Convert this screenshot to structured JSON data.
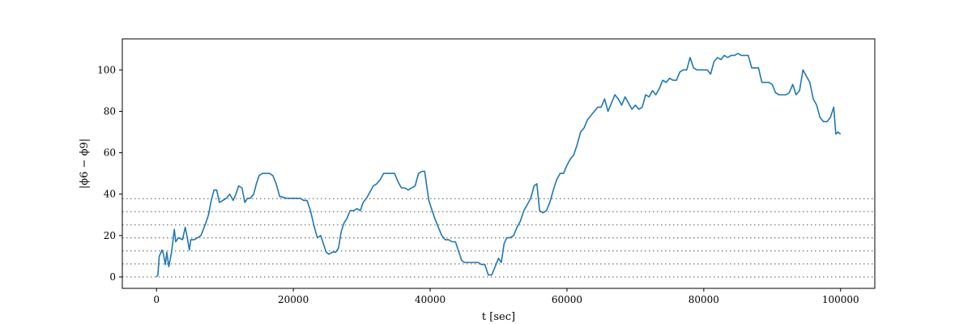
{
  "chart_data": {
    "type": "line",
    "title": "",
    "xlabel": "t [sec]",
    "ylabel": "|ϕ6 − ϕ9|",
    "xlim": [
      -5000,
      105000
    ],
    "ylim": [
      -5.5,
      115
    ],
    "xticks": [
      0,
      20000,
      40000,
      60000,
      80000,
      100000
    ],
    "xtick_labels": [
      "0",
      "20000",
      "40000",
      "60000",
      "80000",
      "100000"
    ],
    "yticks": [
      0,
      20,
      40,
      60,
      80,
      100
    ],
    "ytick_labels": [
      "0",
      "20",
      "40",
      "60",
      "80",
      "100"
    ],
    "grid": false,
    "legend": "none",
    "colors": {
      "series": "#1f77b4",
      "reference_lines": "#808080"
    },
    "reference_lines": {
      "orientation": "horizontal",
      "style": "dotted",
      "y": [
        0,
        6.3,
        12.6,
        18.9,
        25.2,
        31.5,
        37.8
      ]
    },
    "series": [
      {
        "points": [
          [
            0,
            0
          ],
          [
            200,
            1
          ],
          [
            400,
            10
          ],
          [
            800,
            13
          ],
          [
            1000,
            11
          ],
          [
            1300,
            6
          ],
          [
            1500,
            12
          ],
          [
            1800,
            5
          ],
          [
            2200,
            12
          ],
          [
            2600,
            23
          ],
          [
            2800,
            17
          ],
          [
            3200,
            19
          ],
          [
            3800,
            18
          ],
          [
            4200,
            24
          ],
          [
            4500,
            19
          ],
          [
            4800,
            13
          ],
          [
            5000,
            18
          ],
          [
            5500,
            18
          ],
          [
            6000,
            19
          ],
          [
            6500,
            20
          ],
          [
            7200,
            26
          ],
          [
            7600,
            30
          ],
          [
            8000,
            37
          ],
          [
            8400,
            42
          ],
          [
            8800,
            42
          ],
          [
            9200,
            36
          ],
          [
            9700,
            37
          ],
          [
            10200,
            38
          ],
          [
            10700,
            40
          ],
          [
            11200,
            37
          ],
          [
            11600,
            40
          ],
          [
            12000,
            44
          ],
          [
            12500,
            43
          ],
          [
            12900,
            36
          ],
          [
            13300,
            38
          ],
          [
            13700,
            38
          ],
          [
            14200,
            40
          ],
          [
            14600,
            45
          ],
          [
            15000,
            49
          ],
          [
            15500,
            50
          ],
          [
            16000,
            50
          ],
          [
            16500,
            50
          ],
          [
            17000,
            49
          ],
          [
            17500,
            45
          ],
          [
            18000,
            39
          ],
          [
            19000,
            38
          ],
          [
            20000,
            38
          ],
          [
            21000,
            38
          ],
          [
            21500,
            37
          ],
          [
            22000,
            37
          ],
          [
            22500,
            32
          ],
          [
            23000,
            25
          ],
          [
            23500,
            19
          ],
          [
            24000,
            20
          ],
          [
            24400,
            16
          ],
          [
            24800,
            12
          ],
          [
            25200,
            11
          ],
          [
            25700,
            12
          ],
          [
            26200,
            12
          ],
          [
            26600,
            14
          ],
          [
            27000,
            22
          ],
          [
            27400,
            26
          ],
          [
            27800,
            28
          ],
          [
            28300,
            32
          ],
          [
            28800,
            32
          ],
          [
            29300,
            33
          ],
          [
            29800,
            32
          ],
          [
            30200,
            36
          ],
          [
            30700,
            38
          ],
          [
            31200,
            41
          ],
          [
            31700,
            44
          ],
          [
            32200,
            45
          ],
          [
            32700,
            47
          ],
          [
            33200,
            50
          ],
          [
            33700,
            50
          ],
          [
            34300,
            50
          ],
          [
            34800,
            50
          ],
          [
            35300,
            46
          ],
          [
            35800,
            43
          ],
          [
            36300,
            43
          ],
          [
            36800,
            42
          ],
          [
            37300,
            43
          ],
          [
            37800,
            44
          ],
          [
            38300,
            50
          ],
          [
            38800,
            51
          ],
          [
            39200,
            51
          ],
          [
            39500,
            44
          ],
          [
            39800,
            37
          ],
          [
            40200,
            33
          ],
          [
            40700,
            28
          ],
          [
            41200,
            24
          ],
          [
            41700,
            20
          ],
          [
            42200,
            18
          ],
          [
            42700,
            18
          ],
          [
            43200,
            17
          ],
          [
            43700,
            17
          ],
          [
            44200,
            12
          ],
          [
            44600,
            8
          ],
          [
            45000,
            7
          ],
          [
            45500,
            7
          ],
          [
            46000,
            7
          ],
          [
            46500,
            7
          ],
          [
            47000,
            7
          ],
          [
            47500,
            6
          ],
          [
            48000,
            6
          ],
          [
            48500,
            1
          ],
          [
            49000,
            1
          ],
          [
            49500,
            5
          ],
          [
            50000,
            9
          ],
          [
            50400,
            7
          ],
          [
            50800,
            16
          ],
          [
            51200,
            19
          ],
          [
            51700,
            19
          ],
          [
            52200,
            20
          ],
          [
            52700,
            24
          ],
          [
            53200,
            27
          ],
          [
            53700,
            32
          ],
          [
            54200,
            35
          ],
          [
            54700,
            38
          ],
          [
            55200,
            44
          ],
          [
            55600,
            45
          ],
          [
            56000,
            32
          ],
          [
            56500,
            31
          ],
          [
            57000,
            32
          ],
          [
            57500,
            36
          ],
          [
            58000,
            42
          ],
          [
            58500,
            47
          ],
          [
            59000,
            50
          ],
          [
            59500,
            50
          ],
          [
            60000,
            54
          ],
          [
            60500,
            57
          ],
          [
            61000,
            59
          ],
          [
            61500,
            64
          ],
          [
            62000,
            70
          ],
          [
            62500,
            72
          ],
          [
            63000,
            76
          ],
          [
            63500,
            78
          ],
          [
            64000,
            80
          ],
          [
            64500,
            82
          ],
          [
            65000,
            82
          ],
          [
            65500,
            86
          ],
          [
            66000,
            80
          ],
          [
            66500,
            84
          ],
          [
            67000,
            88
          ],
          [
            67500,
            86
          ],
          [
            68000,
            83
          ],
          [
            68500,
            87
          ],
          [
            69000,
            84
          ],
          [
            69500,
            81
          ],
          [
            70000,
            83
          ],
          [
            70500,
            81
          ],
          [
            71000,
            82
          ],
          [
            71500,
            88
          ],
          [
            72000,
            87
          ],
          [
            72500,
            90
          ],
          [
            73000,
            88
          ],
          [
            73500,
            91
          ],
          [
            74000,
            95
          ],
          [
            74500,
            94
          ],
          [
            75000,
            96
          ],
          [
            75500,
            95
          ],
          [
            76000,
            95
          ],
          [
            76500,
            99
          ],
          [
            77000,
            100
          ],
          [
            77500,
            100
          ],
          [
            78000,
            106
          ],
          [
            78500,
            101
          ],
          [
            79000,
            100
          ],
          [
            79500,
            100
          ],
          [
            80000,
            100
          ],
          [
            80500,
            100
          ],
          [
            81000,
            98
          ],
          [
            81500,
            104
          ],
          [
            82000,
            106
          ],
          [
            82500,
            105
          ],
          [
            83000,
            107
          ],
          [
            83500,
            106
          ],
          [
            84000,
            107
          ],
          [
            84500,
            107
          ],
          [
            85000,
            108
          ],
          [
            85500,
            107
          ],
          [
            86000,
            107
          ],
          [
            86500,
            107
          ],
          [
            87000,
            101
          ],
          [
            87500,
            101
          ],
          [
            88000,
            101
          ],
          [
            88500,
            94
          ],
          [
            89000,
            94
          ],
          [
            89500,
            94
          ],
          [
            90000,
            93
          ],
          [
            90500,
            89
          ],
          [
            91000,
            88
          ],
          [
            91500,
            88
          ],
          [
            92000,
            88
          ],
          [
            92500,
            89
          ],
          [
            93000,
            93
          ],
          [
            93500,
            88
          ],
          [
            94000,
            90
          ],
          [
            94500,
            100
          ],
          [
            95000,
            97
          ],
          [
            95500,
            94
          ],
          [
            96000,
            86
          ],
          [
            96500,
            83
          ],
          [
            97000,
            77
          ],
          [
            97500,
            75
          ],
          [
            98000,
            75
          ],
          [
            98500,
            77
          ],
          [
            99000,
            82
          ],
          [
            99300,
            69
          ],
          [
            99600,
            70
          ],
          [
            100000,
            69
          ]
        ]
      }
    ]
  }
}
